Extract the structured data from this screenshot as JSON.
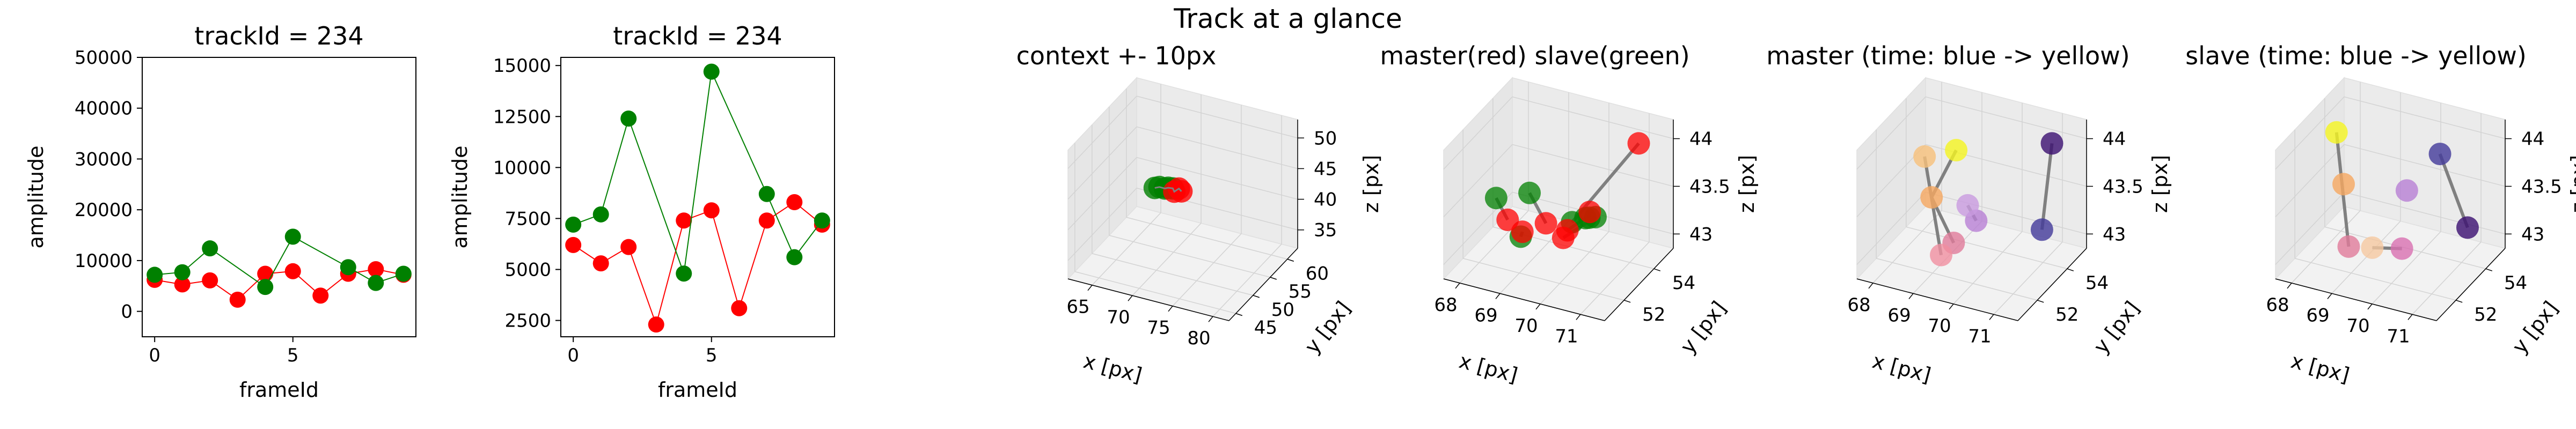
{
  "suptitle": "Track at a glance",
  "colors": {
    "master": "#ff0000",
    "slave": "#008000",
    "line": "#808080"
  },
  "chart_data": [
    {
      "type": "line",
      "title": "trackId = 234",
      "xlabel": "frameId",
      "ylabel": "amplitude",
      "xlim": [
        -0.45,
        9.45
      ],
      "ylim": [
        -5000,
        50000
      ],
      "xticks": [
        0,
        5
      ],
      "yticks": [
        0,
        10000,
        20000,
        30000,
        40000,
        50000
      ],
      "series": [
        {
          "color": "#ff0000",
          "x": [
            0,
            1,
            2,
            3,
            4,
            5,
            6,
            7,
            8,
            9
          ],
          "y": [
            6200,
            5300,
            6100,
            2300,
            7400,
            7900,
            3100,
            7400,
            8300,
            7200
          ]
        },
        {
          "color": "#008000",
          "x": [
            0,
            1,
            2,
            4,
            5,
            7,
            8,
            9
          ],
          "y": [
            7200,
            7700,
            12400,
            4800,
            14700,
            8700,
            5600,
            7400
          ]
        }
      ]
    },
    {
      "type": "line",
      "title": "trackId = 234",
      "xlabel": "frameId",
      "ylabel": "amplitude",
      "xlim": [
        -0.45,
        9.45
      ],
      "ylim": [
        1700,
        15400
      ],
      "xticks": [
        0,
        5
      ],
      "yticks": [
        2500,
        5000,
        7500,
        10000,
        12500,
        15000
      ],
      "series": [
        {
          "color": "#ff0000",
          "x": [
            0,
            1,
            2,
            3,
            4,
            5,
            6,
            7,
            8,
            9
          ],
          "y": [
            6200,
            5300,
            6100,
            2300,
            7400,
            7900,
            3100,
            7400,
            8300,
            7200
          ]
        },
        {
          "color": "#008000",
          "x": [
            0,
            1,
            2,
            4,
            5,
            7,
            8,
            9
          ],
          "y": [
            7200,
            7700,
            12400,
            4800,
            14700,
            8700,
            5600,
            7400
          ]
        }
      ]
    },
    {
      "type": "scatter",
      "projection": "3d",
      "title": "context +- 10px",
      "xlabel": "x [px]",
      "ylabel": "y [px]",
      "zlabel": "z [px]",
      "xlim": [
        62,
        82
      ],
      "ylim": [
        43,
        63
      ],
      "zlim": [
        32,
        53
      ],
      "xticks": [
        65,
        70,
        75,
        80
      ],
      "yticks": [
        45,
        50,
        55,
        60
      ],
      "zticks": [
        35,
        40,
        45,
        50
      ],
      "points": [
        {
          "x": 68.6,
          "y": 52.8,
          "z": 43.3,
          "color": "#008000"
        },
        {
          "x": 69.1,
          "y": 53.0,
          "z": 43.5,
          "color": "#008000"
        },
        {
          "x": 69.6,
          "y": 53.4,
          "z": 43.2,
          "color": "#008000"
        },
        {
          "x": 70.1,
          "y": 53.2,
          "z": 43.6,
          "color": "#008000"
        },
        {
          "x": 70.5,
          "y": 53.6,
          "z": 43.4,
          "color": "#008000"
        },
        {
          "x": 70.9,
          "y": 53.1,
          "z": 43.3,
          "color": "#ff0000"
        },
        {
          "x": 71.3,
          "y": 53.5,
          "z": 43.7,
          "color": "#ff0000"
        },
        {
          "x": 71.7,
          "y": 53.3,
          "z": 43.5,
          "color": "#ff0000"
        }
      ]
    },
    {
      "type": "scatter",
      "projection": "3d",
      "title": "master(red) slave(green)",
      "ylabel": "y [px]",
      "xlabel": "x [px]",
      "zlabel": "z [px]",
      "xlim": [
        67.6,
        71.6
      ],
      "ylim": [
        50.7,
        55.3
      ],
      "zlim": [
        42.85,
        44.2
      ],
      "xticks": [
        68,
        69,
        70,
        71
      ],
      "yticks": [
        52,
        54
      ],
      "zticks": [
        43.0,
        43.5,
        44.0
      ],
      "pairs": [
        {
          "master": [
            68.3,
            53.1,
            43.15
          ],
          "slave": [
            68.2,
            52.6,
            43.45
          ]
        },
        {
          "master": [
            69.0,
            52.2,
            43.25
          ],
          "slave": [
            68.7,
            52.9,
            43.05
          ]
        },
        {
          "master": [
            69.6,
            53.6,
            43.1
          ],
          "slave": [
            70.9,
            51.3,
            43.75
          ]
        },
        {
          "master": [
            70.2,
            51.7,
            43.4
          ],
          "slave": [
            70.0,
            54.4,
            43.15
          ]
        },
        {
          "master": [
            70.6,
            52.4,
            43.6
          ],
          "slave": [
            70.7,
            52.1,
            43.6
          ]
        },
        {
          "master": [
            71.0,
            54.6,
            44.0
          ],
          "slave": [
            69.9,
            53.1,
            43.3
          ]
        },
        {
          "master": [
            69.4,
            52.7,
            43.3
          ],
          "slave": [
            69.4,
            51.6,
            43.8
          ]
        }
      ]
    },
    {
      "type": "scatter",
      "projection": "3d",
      "title": "master (time: blue -> yellow)",
      "xlabel": "x [px]",
      "ylabel": "y [px]",
      "zlabel": "z [px]",
      "xlim": [
        67.6,
        71.6
      ],
      "ylim": [
        50.7,
        55.3
      ],
      "zlim": [
        42.85,
        44.2
      ],
      "xticks": [
        68,
        69,
        70,
        71
      ],
      "yticks": [
        52,
        54
      ],
      "zticks": [
        43.0,
        43.5,
        44.0
      ],
      "points": [
        {
          "x": 71.0,
          "y": 54.6,
          "z": 44.0,
          "color": "#3b0f70"
        },
        {
          "x": 70.9,
          "y": 54.2,
          "z": 43.15,
          "color": "#42399a"
        },
        {
          "x": 69.6,
          "y": 53.3,
          "z": 43.25,
          "color": "#b87fd4"
        },
        {
          "x": 69.5,
          "y": 53.0,
          "z": 43.45,
          "color": "#c99be0"
        },
        {
          "x": 69.3,
          "y": 52.6,
          "z": 43.1,
          "color": "#e07b9a"
        },
        {
          "x": 69.1,
          "y": 52.3,
          "z": 43.0,
          "color": "#f08fa0"
        },
        {
          "x": 68.9,
          "y": 52.2,
          "z": 43.6,
          "color": "#f6a860"
        },
        {
          "x": 68.8,
          "y": 52.0,
          "z": 44.05,
          "color": "#f8c07a"
        },
        {
          "x": 69.4,
          "y": 52.5,
          "z": 44.1,
          "color": "#f5f520"
        }
      ],
      "segments": [
        [
          0,
          1
        ],
        [
          2,
          3
        ],
        [
          4,
          6
        ],
        [
          5,
          7
        ],
        [
          6,
          8
        ]
      ]
    },
    {
      "type": "scatter",
      "projection": "3d",
      "title": "slave (time: blue -> yellow)",
      "xlabel": "x [px]",
      "ylabel": "y [px]",
      "zlabel": "z [px]",
      "xlim": [
        67.6,
        71.6
      ],
      "ylim": [
        50.7,
        55.3
      ],
      "zlim": [
        42.85,
        44.2
      ],
      "xticks": [
        68,
        69,
        70,
        71
      ],
      "yticks": [
        52,
        54
      ],
      "zticks": [
        43.0,
        43.5,
        44.0
      ],
      "points": [
        {
          "x": 71.0,
          "y": 54.4,
          "z": 43.15,
          "color": "#3b0f70"
        },
        {
          "x": 70.5,
          "y": 53.9,
          "z": 43.95,
          "color": "#42399a"
        },
        {
          "x": 69.9,
          "y": 53.3,
          "z": 43.6,
          "color": "#b87fd4"
        },
        {
          "x": 70.0,
          "y": 52.7,
          "z": 43.1,
          "color": "#d86fb0"
        },
        {
          "x": 69.3,
          "y": 52.6,
          "z": 43.05,
          "color": "#f5c8a0"
        },
        {
          "x": 68.9,
          "y": 52.1,
          "z": 43.1,
          "color": "#e07b9a"
        },
        {
          "x": 68.7,
          "y": 52.3,
          "z": 43.7,
          "color": "#f6a860"
        },
        {
          "x": 68.3,
          "y": 52.9,
          "z": 44.1,
          "color": "#f5f520"
        }
      ],
      "segments": [
        [
          0,
          1
        ],
        [
          3,
          4
        ],
        [
          7,
          5
        ]
      ]
    }
  ]
}
